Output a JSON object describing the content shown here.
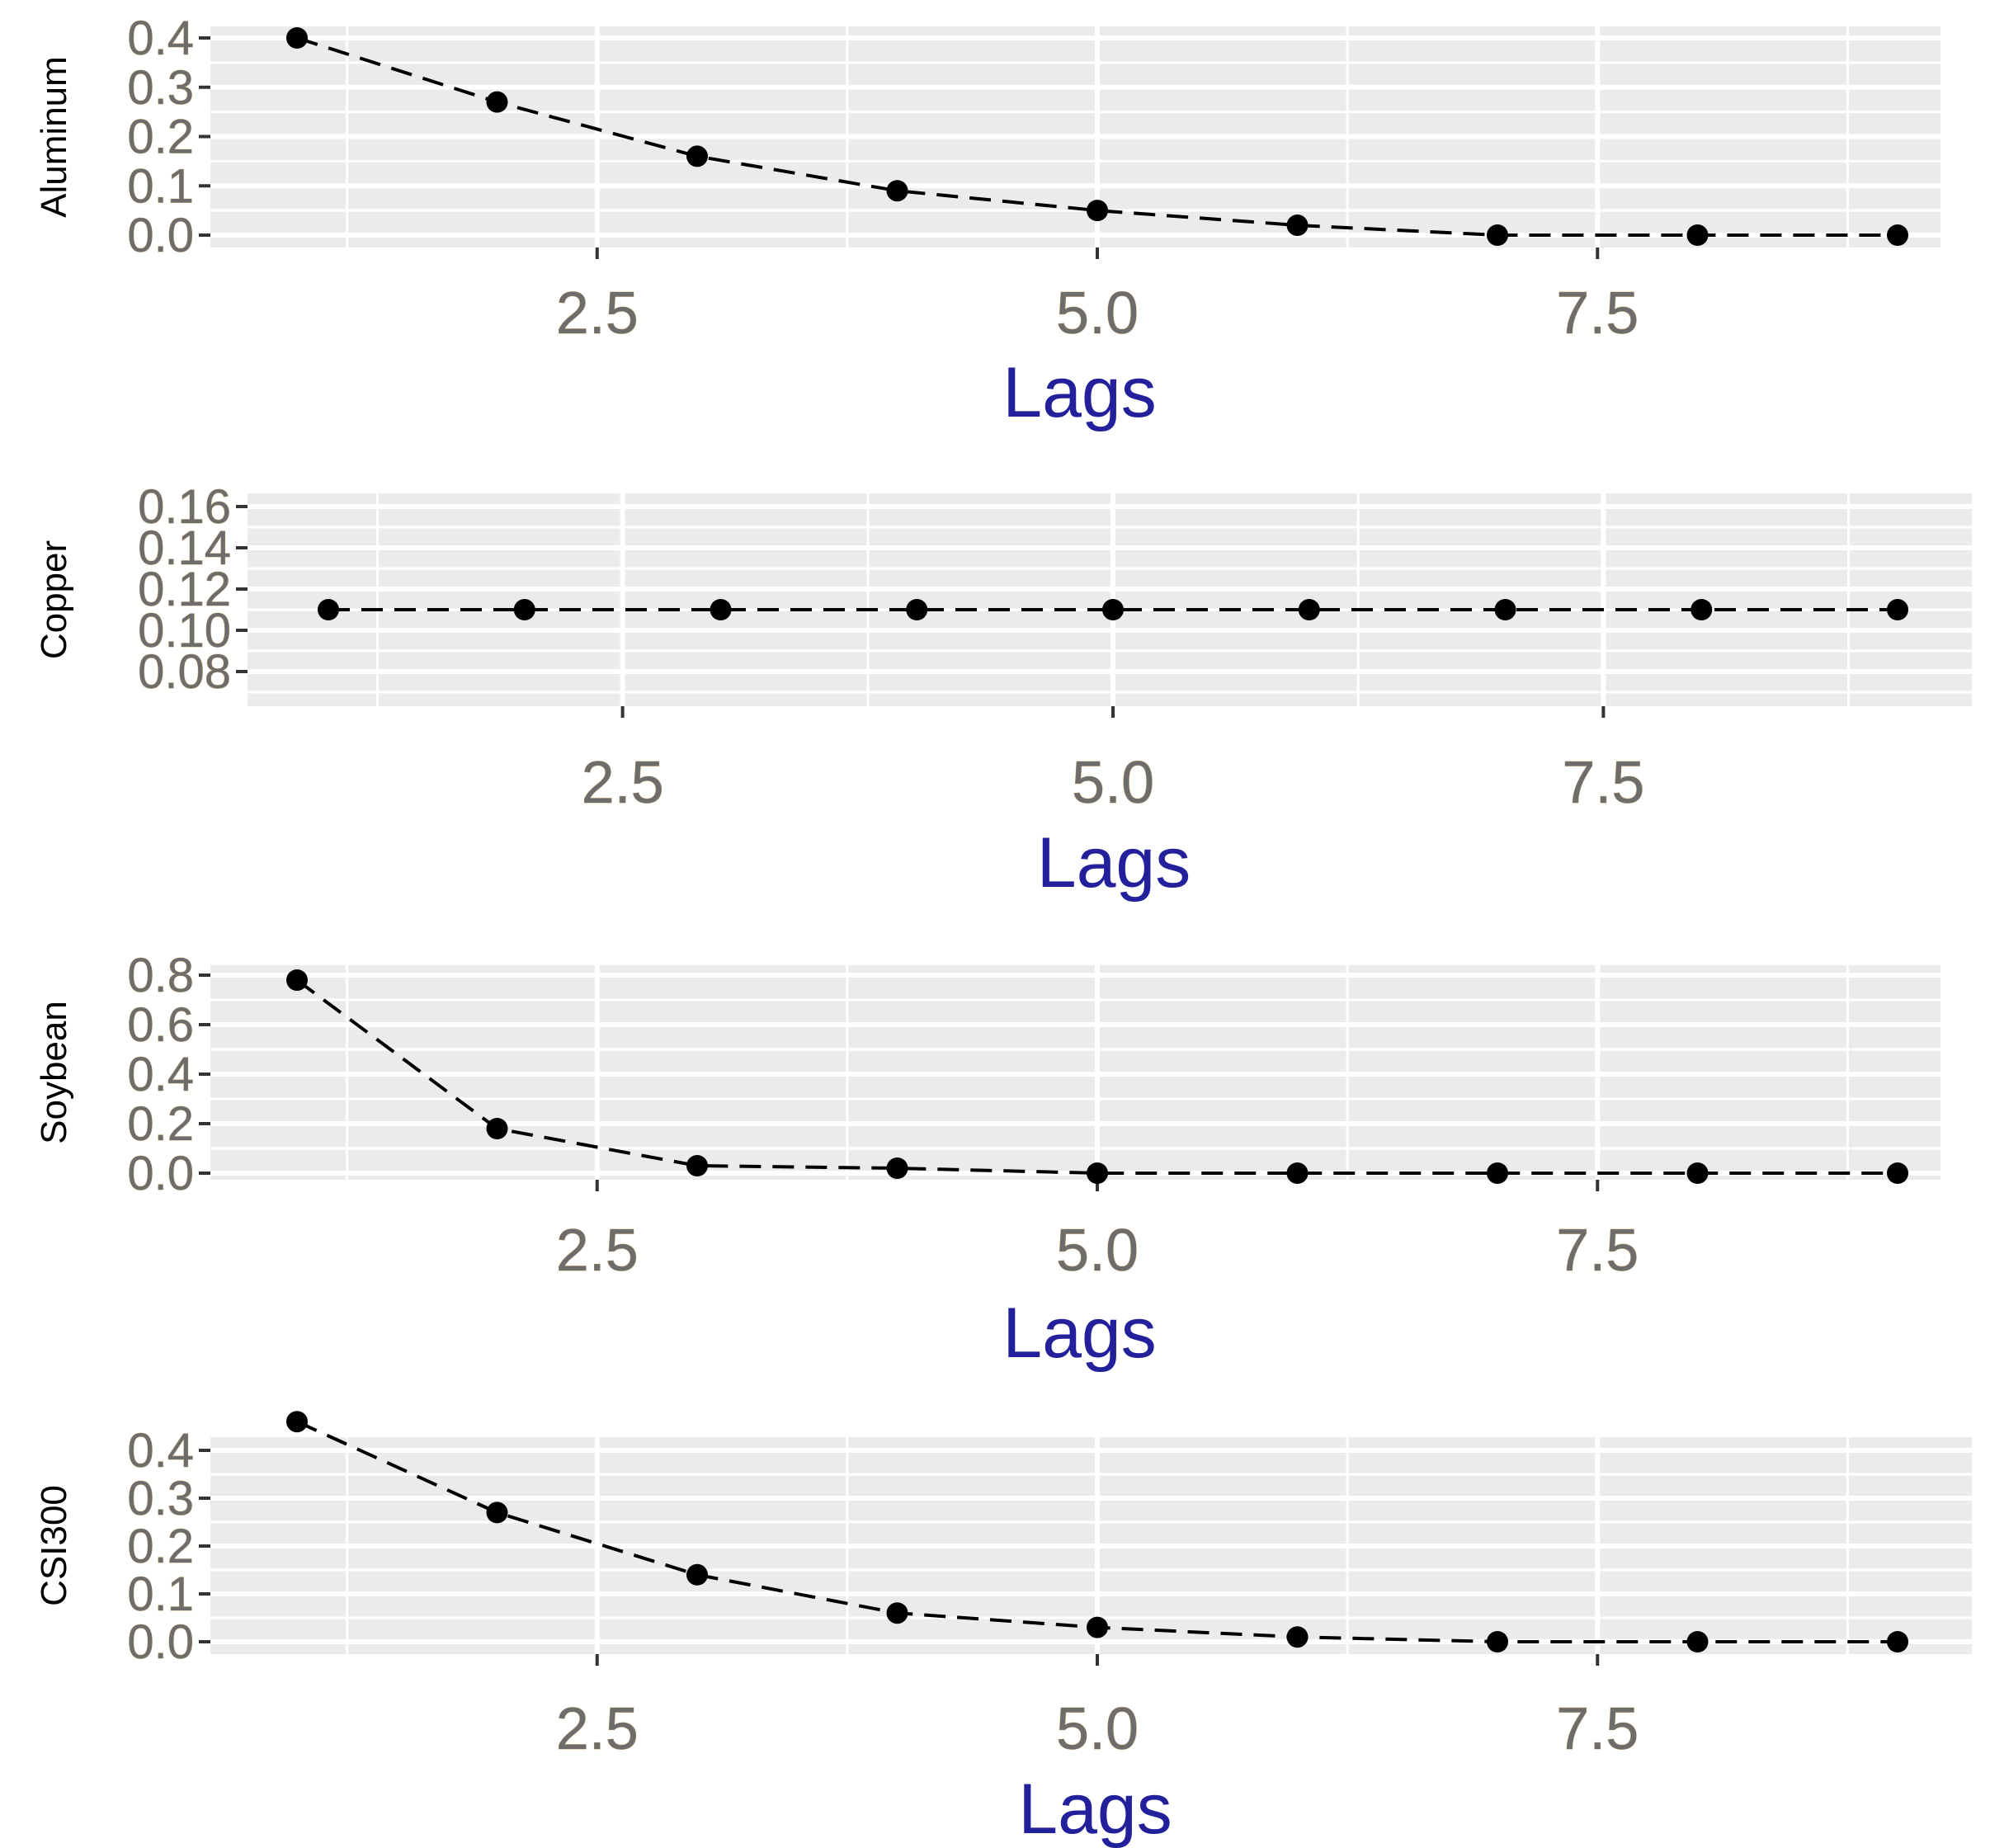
{
  "chart_data": [
    {
      "type": "line",
      "xlabel": "Lags",
      "ylabel": "Aluminum",
      "x": [
        1,
        2,
        3,
        4,
        5,
        6,
        7,
        8,
        9
      ],
      "series": [
        {
          "values": [
            0.4,
            0.27,
            0.16,
            0.09,
            0.05,
            0.02,
            0.0,
            0.0,
            0.0
          ]
        }
      ],
      "xticks": [
        "2.5",
        "5.0",
        "7.5"
      ],
      "yticks": [
        "0.0",
        "0.1",
        "0.2",
        "0.3",
        "0.4"
      ],
      "ylim": [
        0.0,
        0.4
      ],
      "grid": true
    },
    {
      "type": "line",
      "xlabel": "Lags",
      "ylabel": "Copper",
      "x": [
        1,
        2,
        3,
        4,
        5,
        6,
        7,
        8,
        9
      ],
      "series": [
        {
          "values": [
            0.11,
            0.11,
            0.11,
            0.11,
            0.11,
            0.11,
            0.11,
            0.11,
            0.11
          ]
        }
      ],
      "xticks": [
        "2.5",
        "5.0",
        "7.5"
      ],
      "yticks": [
        "0.08",
        "0.10",
        "0.12",
        "0.14",
        "0.16"
      ],
      "ylim": [
        0.08,
        0.16
      ],
      "grid": true
    },
    {
      "type": "line",
      "xlabel": "Lags",
      "ylabel": "Soybean",
      "x": [
        1,
        2,
        3,
        4,
        5,
        6,
        7,
        8,
        9
      ],
      "series": [
        {
          "values": [
            0.78,
            0.18,
            0.03,
            0.02,
            0.0,
            0.0,
            0.0,
            0.0,
            0.0
          ]
        }
      ],
      "xticks": [
        "2.5",
        "5.0",
        "7.5"
      ],
      "yticks": [
        "0.0",
        "0.2",
        "0.4",
        "0.6",
        "0.8"
      ],
      "ylim": [
        0.0,
        0.8
      ],
      "grid": true
    },
    {
      "type": "line",
      "xlabel": "Lags",
      "ylabel": "CSI300",
      "x": [
        1,
        2,
        3,
        4,
        5,
        6,
        7,
        8,
        9
      ],
      "series": [
        {
          "values": [
            0.46,
            0.27,
            0.14,
            0.06,
            0.03,
            0.01,
            0.0,
            0.0,
            0.0
          ]
        }
      ],
      "xticks": [
        "2.5",
        "5.0",
        "7.5"
      ],
      "yticks": [
        "0.0",
        "0.1",
        "0.2",
        "0.3",
        "0.4"
      ],
      "ylim": [
        0.0,
        0.4
      ],
      "grid": true
    }
  ]
}
